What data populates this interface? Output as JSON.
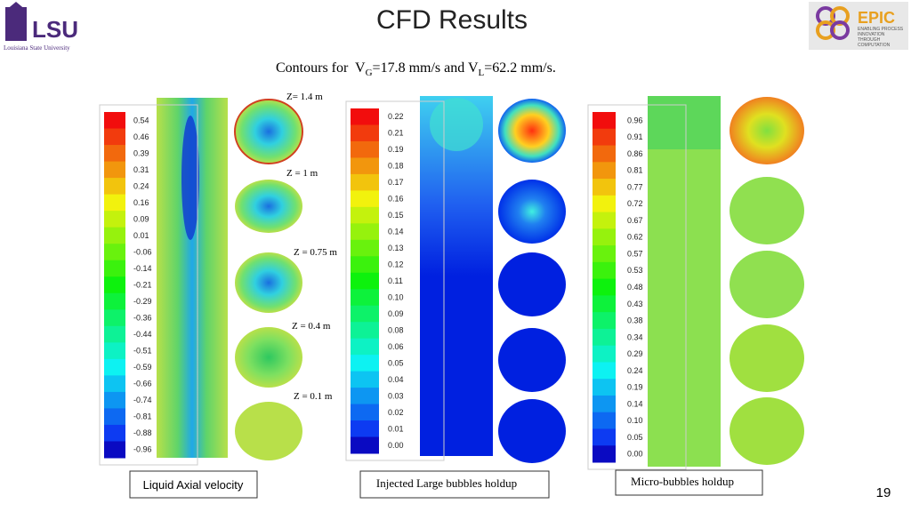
{
  "header": {
    "title": "CFD Results",
    "left_logo": {
      "name": "LSU",
      "subtitle": "Louisiana State University"
    },
    "right_logo": {
      "name": "EPIC",
      "tagline": "ENABLING PROCESS INNOVATION THROUGH COMPUTATION"
    }
  },
  "subtitle": {
    "parts": [
      "Contours for  V",
      "G",
      "=17.8 mm/s and V",
      "L",
      "=62.2 mm/s."
    ]
  },
  "panels": [
    {
      "colorbar_labels": [
        "0.54",
        "0.46",
        "0.39",
        "0.31",
        "0.24",
        "0.16",
        "0.09",
        "0.01",
        "-0.06",
        "-0.14",
        "-0.21",
        "-0.29",
        "-0.36",
        "-0.44",
        "-0.51",
        "-0.59",
        "-0.66",
        "-0.74",
        "-0.81",
        "-0.88",
        "-0.96"
      ],
      "zone_labels": [
        "Z= 1.4 m",
        "Z = 1 m",
        "Z = 0.75 m",
        "Z = 0.4 m",
        "Z = 0.1 m"
      ],
      "caption": "Liquid Axial velocity"
    },
    {
      "colorbar_labels": [
        "0.22",
        "0.21",
        "0.19",
        "0.18",
        "0.17",
        "0.16",
        "0.15",
        "0.14",
        "0.13",
        "0.12",
        "0.11",
        "0.10",
        "0.09",
        "0.08",
        "0.06",
        "0.05",
        "0.04",
        "0.03",
        "0.02",
        "0.01",
        "0.00"
      ],
      "caption": "Injected Large bubbles holdup"
    },
    {
      "colorbar_labels": [
        "0.96",
        "0.91",
        "0.86",
        "0.81",
        "0.77",
        "0.72",
        "0.67",
        "0.62",
        "0.57",
        "0.53",
        "0.48",
        "0.43",
        "0.38",
        "0.34",
        "0.29",
        "0.24",
        "0.19",
        "0.14",
        "0.10",
        "0.05",
        "0.00"
      ],
      "caption": "Micro-bubbles holdup"
    }
  ],
  "page_number": "19"
}
